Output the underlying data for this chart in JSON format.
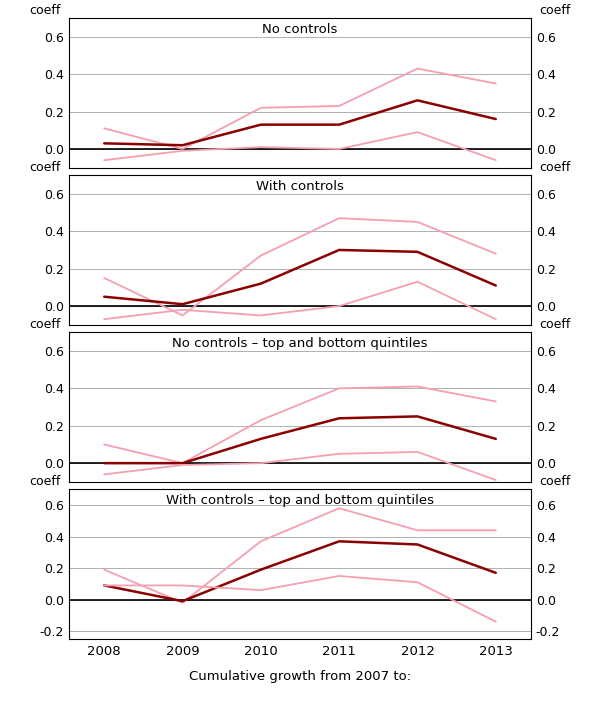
{
  "x": [
    2008,
    2009,
    2010,
    2011,
    2012,
    2013
  ],
  "panels": [
    {
      "title": "No controls",
      "ylim": [
        -0.1,
        0.7
      ],
      "yticks": [
        0.0,
        0.2,
        0.4,
        0.6
      ],
      "yticklabels": [
        "0.0",
        "0.2",
        "0.4",
        "0.6"
      ],
      "lines": [
        {
          "y": [
            0.11,
            0.0,
            0.22,
            0.23,
            0.43,
            0.35
          ],
          "color": "#f4a0b0",
          "lw": 1.3
        },
        {
          "y": [
            0.03,
            0.02,
            0.13,
            0.13,
            0.26,
            0.16
          ],
          "color": "#8b0000",
          "lw": 1.8
        },
        {
          "y": [
            -0.06,
            -0.01,
            0.01,
            0.0,
            0.09,
            -0.06
          ],
          "color": "#f4a0b0",
          "lw": 1.3
        }
      ]
    },
    {
      "title": "With controls",
      "ylim": [
        -0.1,
        0.7
      ],
      "yticks": [
        0.0,
        0.2,
        0.4,
        0.6
      ],
      "yticklabels": [
        "0.0",
        "0.2",
        "0.4",
        "0.6"
      ],
      "lines": [
        {
          "y": [
            0.15,
            -0.05,
            0.27,
            0.47,
            0.45,
            0.28
          ],
          "color": "#f4a0b0",
          "lw": 1.3
        },
        {
          "y": [
            0.05,
            0.01,
            0.12,
            0.3,
            0.29,
            0.11
          ],
          "color": "#8b0000",
          "lw": 1.8
        },
        {
          "y": [
            -0.07,
            -0.02,
            -0.05,
            0.0,
            0.13,
            -0.07
          ],
          "color": "#f4a0b0",
          "lw": 1.3
        }
      ]
    },
    {
      "title": "No controls – top and bottom quintiles",
      "ylim": [
        -0.1,
        0.7
      ],
      "yticks": [
        0.0,
        0.2,
        0.4,
        0.6
      ],
      "yticklabels": [
        "0.0",
        "0.2",
        "0.4",
        "0.6"
      ],
      "lines": [
        {
          "y": [
            0.1,
            0.0,
            0.23,
            0.4,
            0.41,
            0.33
          ],
          "color": "#f4a0b0",
          "lw": 1.3
        },
        {
          "y": [
            0.0,
            0.0,
            0.13,
            0.24,
            0.25,
            0.13
          ],
          "color": "#8b0000",
          "lw": 1.8
        },
        {
          "y": [
            -0.06,
            -0.01,
            0.0,
            0.05,
            0.06,
            -0.09
          ],
          "color": "#f4a0b0",
          "lw": 1.3
        }
      ]
    },
    {
      "title": "With controls – top and bottom quintiles",
      "ylim": [
        -0.25,
        0.7
      ],
      "yticks": [
        -0.2,
        0.0,
        0.2,
        0.4,
        0.6
      ],
      "yticklabels": [
        "-0.2",
        "0.0",
        "0.2",
        "0.4",
        "0.6"
      ],
      "lines": [
        {
          "y": [
            0.19,
            -0.02,
            0.37,
            0.58,
            0.44,
            0.44
          ],
          "color": "#f4a0b0",
          "lw": 1.3
        },
        {
          "y": [
            0.09,
            -0.01,
            0.19,
            0.37,
            0.35,
            0.17
          ],
          "color": "#8b0000",
          "lw": 1.8
        },
        {
          "y": [
            0.09,
            0.09,
            0.06,
            0.15,
            0.11,
            -0.14
          ],
          "color": "#f4a0b0",
          "lw": 1.3
        }
      ]
    }
  ],
  "xlabel": "Cumulative growth from 2007 to:",
  "xtick_labels": [
    "2008",
    "2009",
    "2010",
    "2011",
    "2012",
    "2013"
  ],
  "ylabel": "coeff",
  "background_color": "#ffffff",
  "grid_color": "#b0b0b0",
  "zero_line_color": "#000000",
  "spine_color": "#000000"
}
